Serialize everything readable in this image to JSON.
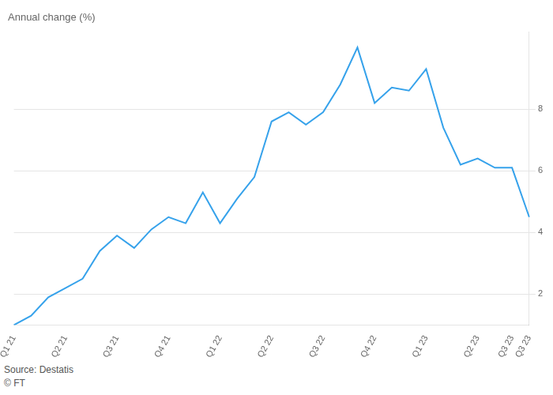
{
  "chart_data": {
    "type": "line",
    "title": "Annual change (%)",
    "annotations": [
      "Source: Destatis",
      "© FT"
    ],
    "categories": [
      "Q1 21",
      null,
      null,
      "Q2 21",
      null,
      null,
      "Q3 21",
      null,
      null,
      "Q4 21",
      null,
      null,
      "Q1 22",
      null,
      null,
      "Q2 22",
      null,
      null,
      "Q3 22",
      null,
      null,
      "Q4 22",
      null,
      null,
      "Q1 23",
      null,
      null,
      "Q2 23",
      null,
      "Q3 23",
      "Q3 23"
    ],
    "values": [
      1.0,
      1.3,
      1.9,
      2.2,
      2.5,
      3.4,
      3.9,
      3.5,
      4.1,
      4.5,
      4.3,
      5.3,
      4.3,
      5.1,
      5.8,
      7.6,
      7.9,
      7.5,
      7.9,
      8.8,
      10.0,
      8.2,
      8.7,
      8.6,
      9.3,
      7.4,
      6.2,
      6.4,
      6.1,
      6.1,
      4.5
    ],
    "ylim": [
      1.0,
      10.5
    ],
    "yticks": [
      2,
      4,
      6,
      8
    ],
    "grid": true
  }
}
